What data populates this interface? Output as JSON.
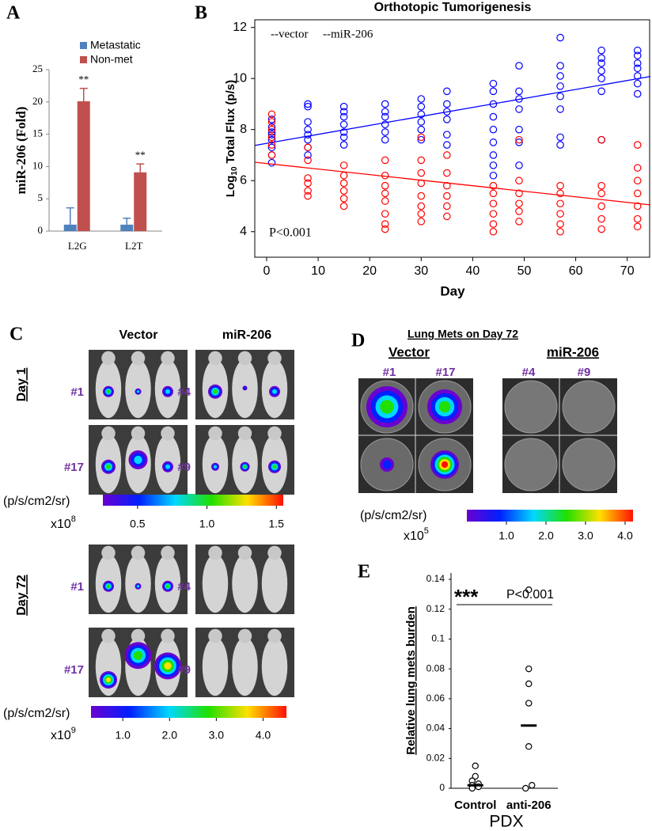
{
  "chart_data": [
    {
      "type": "bar",
      "panel_label": "A",
      "y_label": "miR-206 (Fold)",
      "categories": [
        "L2G",
        "L2T"
      ],
      "series": [
        {
          "name": "Metastatic",
          "color": "#4f81bd",
          "values": [
            1,
            1
          ],
          "errors": [
            2.6,
            1.0
          ]
        },
        {
          "name": "Non-met",
          "color": "#c0504d",
          "values": [
            20.1,
            9.1
          ],
          "errors": [
            2.0,
            1.3
          ],
          "annotations": [
            "**",
            "**"
          ]
        }
      ],
      "ylim": [
        0,
        25
      ],
      "yticks": [
        0,
        5,
        10,
        15,
        20,
        25
      ]
    },
    {
      "type": "scatter",
      "panel_label": "B",
      "title": "Orthotopic Tumorigenesis",
      "x_label": "Day",
      "y_label": [
        "Log",
        "10",
        "Total Flux (p/s)"
      ],
      "annotation": "P<0.001",
      "xlim": [
        -2.3,
        74.5
      ],
      "xticks": [
        0,
        10,
        20,
        30,
        40,
        50,
        60,
        70
      ],
      "ylim": [
        3.0,
        12.3
      ],
      "yticks": [
        4,
        6,
        8,
        10,
        12
      ],
      "series": [
        {
          "name": "--vector",
          "color": "#0000ff",
          "x": [
            1,
            8,
            15,
            23,
            30,
            35,
            44,
            49,
            57,
            65,
            72
          ],
          "values": [
            [
              6.7,
              7.0,
              7.3,
              7.6,
              7.9,
              8.1,
              8.4,
              7.8
            ],
            [
              7.0,
              7.3,
              7.6,
              7.8,
              8.0,
              8.3,
              8.9,
              9.0
            ],
            [
              7.4,
              7.7,
              7.9,
              8.2,
              8.5,
              8.7,
              8.9
            ],
            [
              7.6,
              7.9,
              8.2,
              8.5,
              8.7,
              9.0
            ],
            [
              7.6,
              8.0,
              8.3,
              8.6,
              8.9,
              9.2
            ],
            [
              7.4,
              7.8,
              8.4,
              8.7,
              9.0,
              9.5
            ],
            [
              6.2,
              6.6,
              7.0,
              7.5,
              8.0,
              8.5,
              9.0,
              9.5,
              9.8
            ],
            [
              6.6,
              7.5,
              8.0,
              8.8,
              9.2,
              9.5,
              10.5
            ],
            [
              7.4,
              7.7,
              8.8,
              9.3,
              9.7,
              10.1,
              10.5,
              11.6
            ],
            [
              7.6,
              9.5,
              10.0,
              10.3,
              10.6,
              10.8,
              11.1
            ],
            [
              9.4,
              9.8,
              10.1,
              10.4,
              10.6,
              10.9,
              11.1
            ]
          ],
          "fit": {
            "x": [
              -2.3,
              74.5
            ],
            "y": [
              7.38,
              10.08
            ]
          }
        },
        {
          "name": "--miR-206",
          "color": "#ff0000",
          "x": [
            1,
            8,
            15,
            23,
            30,
            35,
            44,
            49,
            57,
            65,
            72
          ],
          "values": [
            [
              7.0,
              7.4,
              7.7,
              8.0,
              8.3,
              8.6
            ],
            [
              5.4,
              5.6,
              5.9,
              6.1,
              6.8,
              7.3
            ],
            [
              5.0,
              5.3,
              5.6,
              5.9,
              6.2,
              6.6
            ],
            [
              4.1,
              4.3,
              4.7,
              5.2,
              5.5,
              5.8,
              6.2,
              6.8
            ],
            [
              4.4,
              4.7,
              5.0,
              5.4,
              5.9,
              6.3,
              6.8,
              7.7
            ],
            [
              4.6,
              5.0,
              5.4,
              5.8,
              6.3,
              7.0
            ],
            [
              4.0,
              4.3,
              4.7,
              5.1,
              5.5,
              5.8
            ],
            [
              4.4,
              4.8,
              5.1,
              5.5,
              6.0,
              7.6
            ],
            [
              4.0,
              4.3,
              4.7,
              5.1,
              5.5,
              5.8
            ],
            [
              4.1,
              4.5,
              5.0,
              5.5,
              5.8,
              7.6
            ],
            [
              4.2,
              4.5,
              5.0,
              5.5,
              6.0,
              6.5,
              7.4
            ]
          ],
          "fit": {
            "x": [
              -2.3,
              74.5
            ],
            "y": [
              6.72,
              5.05
            ]
          }
        }
      ]
    },
    {
      "type": "dot",
      "panel_label": "E",
      "y_label": "Relative lung mets burden",
      "x_label": "PDX",
      "categories": [
        "Control",
        "anti-206"
      ],
      "values": [
        [
          0.015,
          0.008,
          0.005,
          0.003,
          0.002,
          0.001,
          0.0
        ],
        [
          0.133,
          0.08,
          0.07,
          0.057,
          0.028,
          0.002,
          0.0
        ]
      ],
      "medians": [
        0.002,
        0.042
      ],
      "annotation": "***",
      "p_value": "P<0.001",
      "ylim": [
        0,
        0.14
      ],
      "yticks": [
        0,
        0.02,
        0.04,
        0.06,
        0.08,
        0.1,
        0.12,
        0.14
      ]
    }
  ],
  "panel_c": {
    "label": "C",
    "columns": [
      "Vector",
      "miR-206"
    ],
    "days": [
      "Day 1",
      "Day 72"
    ],
    "mice": [
      [
        "#1",
        "#4"
      ],
      [
        "#17",
        "#9"
      ],
      [
        "#1",
        "#4"
      ],
      [
        "#17",
        "#9"
      ]
    ],
    "colorbars": [
      {
        "unit": "(p/s/cm2/sr)",
        "multiplier": "x10",
        "exponent": "8",
        "lim": [
          0.25,
          1.55
        ],
        "ticks": [
          0.5,
          {
            "value": 1,
            "label": "1.0"
          },
          1.5
        ]
      },
      {
        "unit": "(p/s/cm2/sr)",
        "multiplier": "x10",
        "exponent": "9",
        "lim": [
          0.32,
          4.5
        ],
        "ticks": [
          {
            "value": 1,
            "label": "1.0"
          },
          {
            "value": 2,
            "label": "2.0"
          },
          {
            "value": 3,
            "label": "3.0"
          },
          {
            "value": 4,
            "label": "4.0"
          }
        ]
      }
    ]
  },
  "panel_d": {
    "label": "D",
    "title": "Lung Mets on Day 72",
    "columns": [
      "Vector",
      "miR-206"
    ],
    "wells": [
      "#1",
      "#17",
      "#4",
      "#9"
    ],
    "colorbar": {
      "unit": "(p/s/cm2/sr)",
      "multiplier": "x10",
      "exponent": "5",
      "lim": [
        0,
        4.2
      ],
      "ticks": [
        {
          "value": 1,
          "label": "1.0"
        },
        {
          "value": 2,
          "label": "2.0"
        },
        {
          "value": 3,
          "label": "3.0"
        },
        {
          "value": 4,
          "label": "4.0"
        }
      ]
    }
  }
}
